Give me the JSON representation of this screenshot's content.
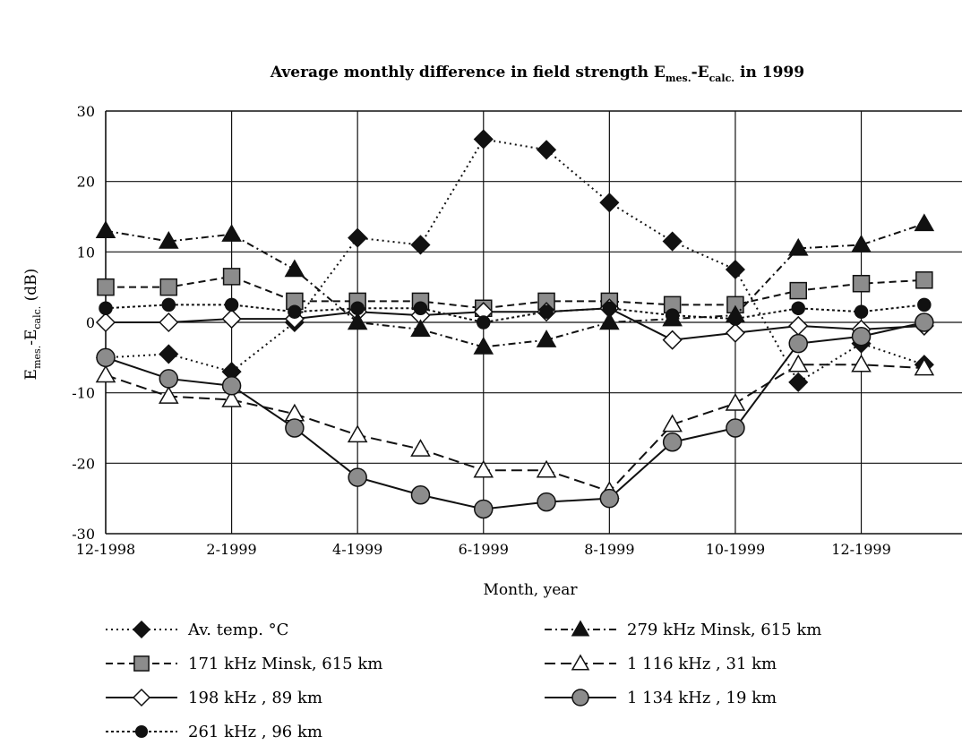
{
  "chart_data": {
    "type": "line",
    "title": "Average monthly difference in field strength E",
    "title_sub1": "mes.",
    "title_mid": "-E",
    "title_sub2": "calc.",
    "title_tail": " in 1999",
    "xlabel": "Month, year",
    "ylabel_main": "E",
    "ylabel_sub1": "mes.",
    "ylabel_mid": "-E",
    "ylabel_sub2": "calc.",
    "ylabel_tail": " (dB)",
    "ylim": [
      -30,
      30
    ],
    "yticks": [
      30,
      20,
      10,
      0,
      -10,
      -20,
      -30
    ],
    "xlim": [
      12,
      25.6
    ],
    "xticks": [
      {
        "x": 12,
        "label": "12-1998"
      },
      {
        "x": 14,
        "label": "2-1999"
      },
      {
        "x": 16,
        "label": "4-1999"
      },
      {
        "x": 18,
        "label": "6-1999"
      },
      {
        "x": 20,
        "label": "8-1999"
      },
      {
        "x": 22,
        "label": "10-1999"
      },
      {
        "x": 24,
        "label": "12-1999"
      }
    ],
    "x": [
      12,
      13,
      14,
      15,
      16,
      17,
      18,
      19,
      20,
      21,
      22,
      23,
      24,
      25
    ],
    "grid": true,
    "legend_position": "bottom",
    "series": [
      {
        "name": "Av. temp. °C",
        "values": [
          -5,
          -4.5,
          -7,
          0,
          12,
          11,
          26,
          24.5,
          17,
          11.5,
          7.5,
          -8.5,
          -3,
          -6
        ],
        "marker": "diamond",
        "fill": "#111111",
        "dash": "2,4",
        "color": "#111111"
      },
      {
        "name": "171 kHz Minsk, 615 km",
        "values": [
          5,
          5,
          6.5,
          3,
          3,
          3,
          2,
          3,
          3,
          2.5,
          2.5,
          4.5,
          5.5,
          6
        ],
        "marker": "square",
        "fill": "#8c8c8c",
        "dash": "8,5",
        "color": "#111111"
      },
      {
        "name": "198 kHz , 89 km",
        "values": [
          0,
          0,
          0.5,
          0.5,
          1.5,
          1,
          1.5,
          1.5,
          2,
          -2.5,
          -1.5,
          -0.5,
          -1,
          -0.5
        ],
        "marker": "diamond",
        "fill": "#ffffff",
        "dash": "",
        "color": "#111111"
      },
      {
        "name": "261 kHz , 96 km",
        "values": [
          2,
          2.5,
          2.5,
          1.5,
          2,
          2,
          0,
          1.5,
          2,
          1,
          0.5,
          2,
          1.5,
          2.5
        ],
        "marker": "circle-small",
        "fill": "#111111",
        "dash": "3,3",
        "color": "#111111"
      },
      {
        "name": "279 kHz Minsk, 615 km",
        "values": [
          13,
          11.5,
          12.5,
          7.5,
          0,
          -1,
          -3.5,
          -2.5,
          0,
          0.5,
          1,
          10.5,
          11,
          14
        ],
        "marker": "triangle",
        "fill": "#111111",
        "dash": "8,4,2,4",
        "color": "#111111"
      },
      {
        "name": "1 116 kHz , 31 km",
        "values": [
          -7.5,
          -10.5,
          -11,
          -13,
          -16,
          -18,
          -21,
          -21,
          -24,
          -14.5,
          -11.5,
          -6,
          -6,
          -6.5
        ],
        "marker": "triangle",
        "fill": "#ffffff",
        "dash": "12,6",
        "color": "#111111"
      },
      {
        "name": "1 134 kHz , 19 km",
        "values": [
          -5,
          -8,
          -9,
          -15,
          -22,
          -24.5,
          -26.5,
          -25.5,
          -25,
          -17,
          -15,
          -3,
          -2,
          0
        ],
        "marker": "circle",
        "fill": "#8c8c8c",
        "dash": "",
        "color": "#111111"
      }
    ]
  }
}
